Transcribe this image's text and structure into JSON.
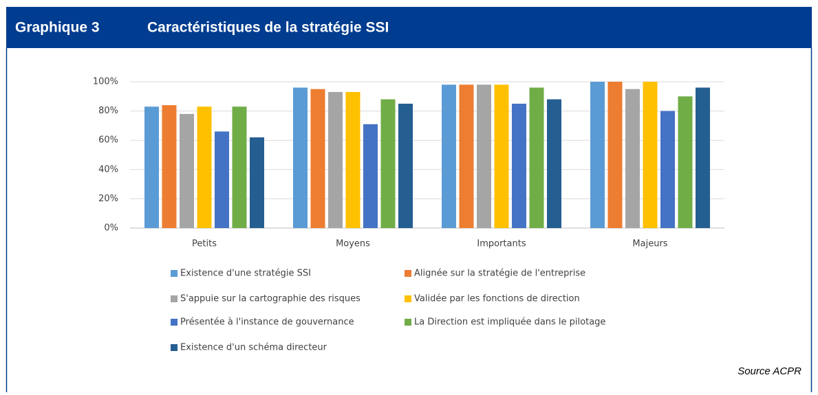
{
  "header": {
    "number": "Graphique 3",
    "title": "Caractéristiques de la stratégie SSI"
  },
  "source": "Source ACPR",
  "chart_data": {
    "type": "bar",
    "categories": [
      "Petits",
      "Moyens",
      "Importants",
      "Majeurs"
    ],
    "series": [
      {
        "name": "Existence d'une stratégie SSI",
        "color": "#5b9bd5",
        "values": [
          83,
          96,
          98,
          100
        ]
      },
      {
        "name": "Alignée sur la stratégie de l'entreprise",
        "color": "#ed7d31",
        "values": [
          84,
          95,
          98,
          100
        ]
      },
      {
        "name": "S'appuie sur la cartographie des risques",
        "color": "#a5a5a5",
        "values": [
          78,
          93,
          98,
          95
        ]
      },
      {
        "name": "Validée par les fonctions de direction",
        "color": "#ffc000",
        "values": [
          83,
          93,
          98,
          100
        ]
      },
      {
        "name": "Présentée à l'instance de gouvernance",
        "color": "#4472c4",
        "values": [
          66,
          71,
          85,
          80
        ]
      },
      {
        "name": "La Direction est impliquée dans le pilotage",
        "color": "#70ad47",
        "values": [
          83,
          88,
          96,
          90
        ]
      },
      {
        "name": "Existence d'un schéma directeur",
        "color": "#255e91",
        "values": [
          62,
          85,
          88,
          96
        ]
      }
    ],
    "ylim": [
      0,
      100
    ],
    "yticks": [
      {
        "value": 0,
        "label": "0%"
      },
      {
        "value": 20,
        "label": "20%"
      },
      {
        "value": 40,
        "label": "40%"
      },
      {
        "value": 60,
        "label": "60%"
      },
      {
        "value": 80,
        "label": "80%"
      },
      {
        "value": 100,
        "label": "100%"
      }
    ],
    "grid": true
  }
}
